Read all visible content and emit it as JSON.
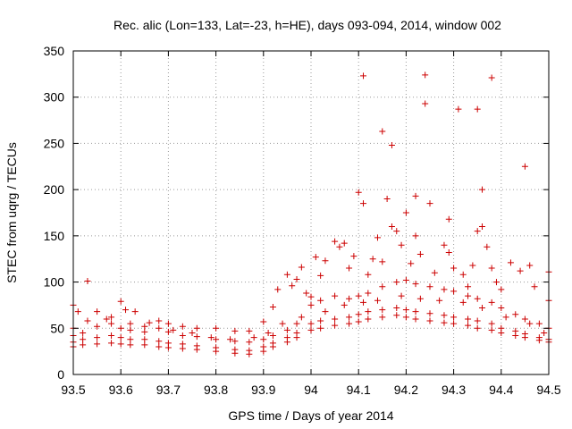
{
  "chart_data": {
    "type": "scatter",
    "title": "Rec. alic (Lon=133, Lat=-23, h=HE), days 093-094, 2014, window 002",
    "xlabel": "GPS time / Days of year 2014",
    "ylabel": "STEC from uqrg / TECUs",
    "xlim": [
      93.5,
      94.5
    ],
    "ylim": [
      0,
      350
    ],
    "xticks": [
      93.5,
      93.6,
      93.7,
      93.8,
      93.9,
      94,
      94.1,
      94.2,
      94.3,
      94.4,
      94.5
    ],
    "xtick_labels": [
      "93.5",
      "93.6",
      "93.7",
      "93.8",
      "93.9",
      "94",
      "94.1",
      "94.2",
      "94.3",
      "94.4",
      "94.5"
    ],
    "yticks": [
      0,
      50,
      100,
      150,
      200,
      250,
      300,
      350
    ],
    "ytick_labels": [
      "0",
      "50",
      "100",
      "150",
      "200",
      "250",
      "300",
      "350"
    ],
    "grid": true,
    "marker": "+",
    "color": "#cc0000",
    "series": [
      {
        "points": [
          [
            93.5,
            75
          ],
          [
            93.51,
            68
          ],
          [
            93.53,
            101
          ],
          [
            93.55,
            68
          ],
          [
            93.58,
            62
          ],
          [
            93.6,
            79
          ],
          [
            93.61,
            70
          ],
          [
            93.63,
            68
          ],
          [
            93.65,
            52
          ],
          [
            93.68,
            58
          ],
          [
            93.7,
            55
          ],
          [
            93.73,
            52
          ],
          [
            93.76,
            50
          ],
          [
            93.8,
            50
          ],
          [
            93.84,
            47
          ],
          [
            93.87,
            47
          ],
          [
            93.9,
            57
          ],
          [
            93.92,
            73
          ],
          [
            93.93,
            92
          ],
          [
            93.95,
            108
          ],
          [
            93.96,
            96
          ],
          [
            93.97,
            103
          ],
          [
            93.98,
            116
          ],
          [
            93.99,
            88
          ],
          [
            94.0,
            84
          ],
          [
            94.01,
            127
          ],
          [
            94.02,
            107
          ],
          [
            94.03,
            123
          ],
          [
            94.05,
            144
          ],
          [
            94.06,
            138
          ],
          [
            94.07,
            142
          ],
          [
            94.08,
            115
          ],
          [
            94.09,
            128
          ],
          [
            94.1,
            197
          ],
          [
            94.11,
            323
          ],
          [
            94.11,
            185
          ],
          [
            94.12,
            108
          ],
          [
            94.13,
            125
          ],
          [
            94.14,
            148
          ],
          [
            94.15,
            122
          ],
          [
            94.15,
            263
          ],
          [
            94.16,
            190
          ],
          [
            94.17,
            160
          ],
          [
            94.17,
            248
          ],
          [
            94.18,
            155
          ],
          [
            94.19,
            140
          ],
          [
            94.2,
            175
          ],
          [
            94.21,
            120
          ],
          [
            94.22,
            193
          ],
          [
            94.22,
            150
          ],
          [
            94.23,
            130
          ],
          [
            94.24,
            324
          ],
          [
            94.24,
            293
          ],
          [
            94.25,
            185
          ],
          [
            94.26,
            110
          ],
          [
            94.28,
            140
          ],
          [
            94.29,
            168
          ],
          [
            94.29,
            132
          ],
          [
            94.3,
            115
          ],
          [
            94.31,
            287
          ],
          [
            94.32,
            108
          ],
          [
            94.33,
            95
          ],
          [
            94.34,
            118
          ],
          [
            94.35,
            287
          ],
          [
            94.35,
            155
          ],
          [
            94.36,
            200
          ],
          [
            94.36,
            160
          ],
          [
            94.37,
            138
          ],
          [
            94.38,
            321
          ],
          [
            94.38,
            115
          ],
          [
            94.39,
            100
          ],
          [
            94.4,
            92
          ],
          [
            94.42,
            121
          ],
          [
            94.44,
            112
          ],
          [
            94.45,
            225
          ],
          [
            94.46,
            118
          ],
          [
            94.47,
            95
          ],
          [
            94.5,
            111
          ],
          [
            94.5,
            80
          ]
        ]
      },
      {
        "points": [
          [
            93.5,
            42
          ],
          [
            93.52,
            45
          ],
          [
            93.55,
            52
          ],
          [
            93.58,
            55
          ],
          [
            93.6,
            50
          ],
          [
            93.62,
            48
          ],
          [
            93.65,
            46
          ],
          [
            93.68,
            50
          ],
          [
            93.7,
            46
          ],
          [
            93.73,
            42
          ],
          [
            93.76,
            41
          ],
          [
            93.8,
            38
          ],
          [
            93.84,
            36
          ],
          [
            93.87,
            35
          ],
          [
            93.9,
            38
          ],
          [
            93.92,
            42
          ],
          [
            93.95,
            48
          ],
          [
            93.97,
            55
          ],
          [
            94.0,
            75
          ],
          [
            94.02,
            80
          ],
          [
            94.05,
            85
          ],
          [
            94.08,
            82
          ],
          [
            94.1,
            85
          ],
          [
            94.12,
            88
          ],
          [
            94.15,
            95
          ],
          [
            94.18,
            100
          ],
          [
            94.2,
            102
          ],
          [
            94.22,
            98
          ],
          [
            94.25,
            95
          ],
          [
            94.28,
            92
          ],
          [
            94.3,
            90
          ],
          [
            94.33,
            85
          ],
          [
            94.35,
            82
          ],
          [
            94.38,
            78
          ],
          [
            94.4,
            72
          ],
          [
            94.43,
            65
          ],
          [
            94.45,
            60
          ],
          [
            94.48,
            55
          ],
          [
            94.5,
            50
          ]
        ]
      },
      {
        "points": [
          [
            93.5,
            35
          ],
          [
            93.52,
            38
          ],
          [
            93.55,
            40
          ],
          [
            93.58,
            42
          ],
          [
            93.6,
            40
          ],
          [
            93.62,
            38
          ],
          [
            93.65,
            38
          ],
          [
            93.68,
            36
          ],
          [
            93.7,
            34
          ],
          [
            93.73,
            33
          ],
          [
            93.76,
            31
          ],
          [
            93.8,
            29
          ],
          [
            93.84,
            27
          ],
          [
            93.87,
            26
          ],
          [
            93.9,
            30
          ],
          [
            93.92,
            34
          ],
          [
            93.95,
            40
          ],
          [
            93.97,
            45
          ],
          [
            94.0,
            55
          ],
          [
            94.02,
            58
          ],
          [
            94.05,
            60
          ],
          [
            94.08,
            62
          ],
          [
            94.1,
            65
          ],
          [
            94.12,
            68
          ],
          [
            94.15,
            70
          ],
          [
            94.18,
            72
          ],
          [
            94.2,
            70
          ],
          [
            94.22,
            68
          ],
          [
            94.25,
            66
          ],
          [
            94.28,
            64
          ],
          [
            94.3,
            62
          ],
          [
            94.33,
            60
          ],
          [
            94.35,
            58
          ],
          [
            94.38,
            55
          ],
          [
            94.4,
            50
          ],
          [
            94.43,
            47
          ],
          [
            94.45,
            44
          ],
          [
            94.48,
            40
          ],
          [
            94.5,
            38
          ]
        ]
      },
      {
        "points": [
          [
            93.5,
            30
          ],
          [
            93.52,
            32
          ],
          [
            93.55,
            33
          ],
          [
            93.58,
            34
          ],
          [
            93.6,
            33
          ],
          [
            93.62,
            32
          ],
          [
            93.65,
            32
          ],
          [
            93.68,
            30
          ],
          [
            93.7,
            29
          ],
          [
            93.73,
            28
          ],
          [
            93.76,
            27
          ],
          [
            93.8,
            25
          ],
          [
            93.84,
            23
          ],
          [
            93.87,
            22
          ],
          [
            93.9,
            25
          ],
          [
            93.92,
            30
          ],
          [
            93.95,
            35
          ],
          [
            93.97,
            40
          ],
          [
            94.0,
            48
          ],
          [
            94.02,
            50
          ],
          [
            94.05,
            53
          ],
          [
            94.08,
            55
          ],
          [
            94.1,
            57
          ],
          [
            94.12,
            60
          ],
          [
            94.15,
            62
          ],
          [
            94.18,
            64
          ],
          [
            94.2,
            62
          ],
          [
            94.22,
            60
          ],
          [
            94.25,
            58
          ],
          [
            94.28,
            56
          ],
          [
            94.3,
            55
          ],
          [
            94.33,
            53
          ],
          [
            94.35,
            50
          ],
          [
            94.38,
            48
          ],
          [
            94.4,
            45
          ],
          [
            94.43,
            42
          ],
          [
            94.45,
            40
          ],
          [
            94.48,
            37
          ],
          [
            94.5,
            35
          ]
        ]
      },
      {
        "points": [
          [
            93.5,
            50
          ],
          [
            93.53,
            58
          ],
          [
            93.57,
            60
          ],
          [
            93.62,
            55
          ],
          [
            93.66,
            56
          ],
          [
            93.71,
            48
          ],
          [
            93.75,
            45
          ],
          [
            93.79,
            40
          ],
          [
            93.83,
            38
          ],
          [
            93.88,
            40
          ],
          [
            93.91,
            45
          ],
          [
            93.94,
            55
          ],
          [
            93.98,
            62
          ],
          [
            94.03,
            68
          ],
          [
            94.07,
            75
          ],
          [
            94.11,
            78
          ],
          [
            94.14,
            80
          ],
          [
            94.19,
            85
          ],
          [
            94.23,
            82
          ],
          [
            94.27,
            80
          ],
          [
            94.32,
            78
          ],
          [
            94.36,
            72
          ],
          [
            94.41,
            62
          ],
          [
            94.46,
            55
          ],
          [
            94.49,
            45
          ]
        ]
      }
    ]
  }
}
